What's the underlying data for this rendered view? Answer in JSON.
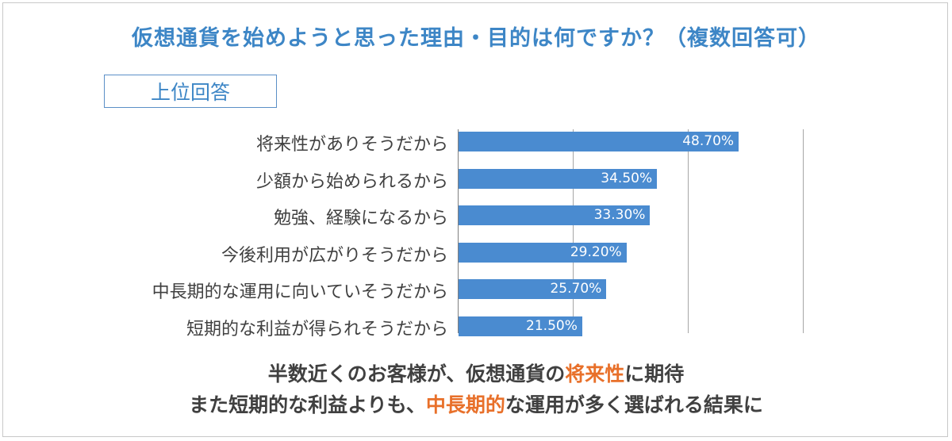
{
  "title": "仮想通貨を始めようと思った理由・目的は何ですか？（複数回答可）",
  "badge": "上位回答",
  "colors": {
    "title": "#3d86c6",
    "bar": "#4a8bd0",
    "accent": "#e8702a",
    "text": "#404040"
  },
  "chart_data": {
    "type": "bar",
    "orientation": "horizontal",
    "categories": [
      "将来性がありそうだから",
      "少額から始められるから",
      "勉強、経験になるから",
      "今後利用が広がりそうだから",
      "中長期的な運用に向いていそうだから",
      "短期的な利益が得られそうだから"
    ],
    "values": [
      48.7,
      34.5,
      33.3,
      29.2,
      25.7,
      21.5
    ],
    "data_labels": [
      "48.70%",
      "34.50%",
      "33.30%",
      "29.20%",
      "25.70%",
      "21.50%"
    ],
    "xlim": [
      0,
      60
    ],
    "gridlines": [
      20,
      40
    ],
    "grid": true
  },
  "summary": {
    "line1": {
      "part1": "半数近くのお客様が、仮想通貨の",
      "highlight": "将来性",
      "part2": "に期待"
    },
    "line2": {
      "part1": "また短期的な利益よりも、",
      "highlight": "中長期的",
      "part2": "な運用が多く選ばれる結果に"
    }
  }
}
